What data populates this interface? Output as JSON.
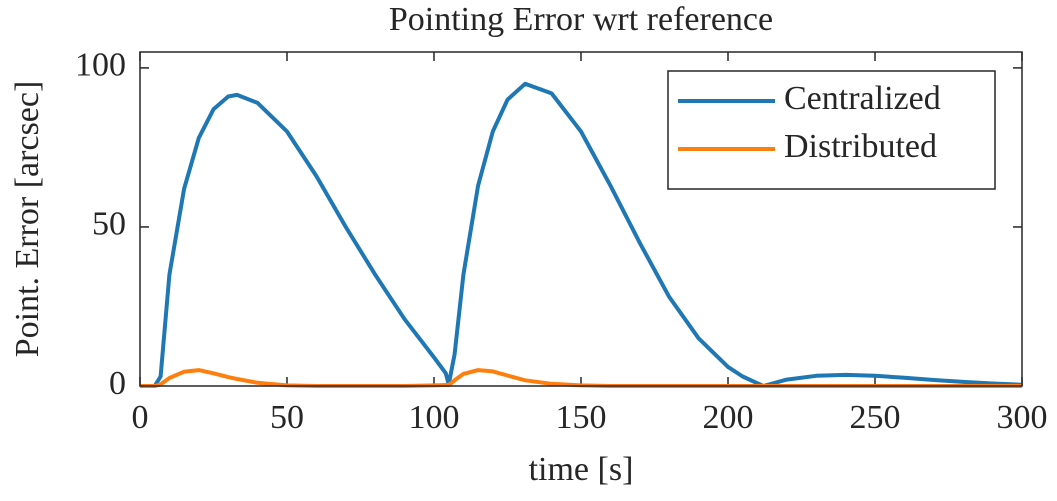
{
  "chart_data": {
    "type": "line",
    "title": "Pointing Error wrt reference",
    "xlabel": "time [s]",
    "ylabel": "Point. Error [arcsec]",
    "x": [
      0,
      5,
      7,
      10,
      15,
      20,
      25,
      30,
      33,
      40,
      50,
      60,
      70,
      80,
      90,
      100,
      104,
      105,
      107,
      110,
      115,
      120,
      125,
      131,
      140,
      150,
      160,
      170,
      180,
      190,
      200,
      205,
      212,
      220,
      230,
      240,
      250,
      260,
      270,
      280,
      290,
      300
    ],
    "series": [
      {
        "name": "Centralized",
        "color": "#1f77b4",
        "values": [
          0,
          0,
          3,
          35,
          62,
          78,
          87,
          91,
          91.5,
          89,
          80,
          66,
          50,
          35,
          21,
          9,
          4,
          0.5,
          10,
          35,
          63,
          80,
          90,
          95,
          92,
          80,
          63,
          45,
          28,
          15,
          6,
          3,
          0,
          2,
          3.2,
          3.5,
          3.2,
          2.6,
          1.9,
          1.3,
          0.8,
          0.4
        ]
      },
      {
        "name": "Distributed",
        "color": "#ff7f0e",
        "values": [
          0,
          0,
          0.5,
          2.5,
          4.5,
          5,
          4,
          2.8,
          2.2,
          1,
          0.2,
          0,
          0,
          0,
          0,
          0.2,
          0.3,
          0.3,
          1.8,
          3.8,
          5,
          4.6,
          3.3,
          1.8,
          0.7,
          0.2,
          0,
          0,
          0,
          0,
          0,
          0,
          0,
          0,
          0,
          0,
          0,
          0,
          0,
          0,
          0,
          0
        ]
      }
    ],
    "xlim": [
      0,
      300
    ],
    "ylim": [
      0,
      105
    ],
    "xticks": [
      0,
      50,
      100,
      150,
      200,
      250,
      300
    ],
    "yticks": [
      0,
      50,
      100
    ],
    "legend": "northeast"
  }
}
